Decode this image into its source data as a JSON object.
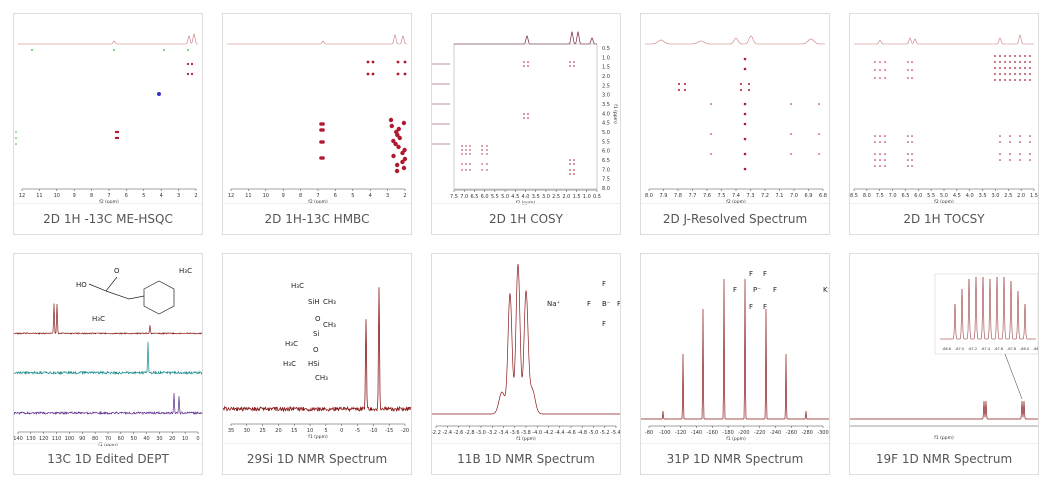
{
  "cards": [
    {
      "kind": "hsqc",
      "caption": "2D 1H -13C ME-HSQC",
      "axis_label": "f2 (ppm)",
      "ticks": [
        "12",
        "11",
        "10",
        "9",
        "8",
        "7",
        "6",
        "5",
        "4",
        "3",
        "2"
      ]
    },
    {
      "kind": "hmbc",
      "caption": "2D 1H-13C HMBC",
      "axis_label": "f2 (ppm)",
      "ticks": [
        "12",
        "11",
        "10",
        "9",
        "8",
        "7",
        "6",
        "5",
        "4",
        "3",
        "2"
      ]
    },
    {
      "kind": "cosy",
      "caption": "2D 1H COSY",
      "axis_label": "f2 (ppm)",
      "side_label": "f1 (ppm)",
      "ticks": [
        "7.5",
        "7.0",
        "6.5",
        "6.0",
        "5.5",
        "5.0",
        "4.5",
        "4.0",
        "3.5",
        "3.0",
        "2.5",
        "2.0",
        "1.5",
        "1.0",
        "0.5"
      ],
      "side_ticks": [
        "0.5",
        "1.0",
        "1.5",
        "2.0",
        "2.5",
        "3.0",
        "3.5",
        "4.0",
        "4.5",
        "5.0",
        "5.5",
        "6.0",
        "6.5",
        "7.0",
        "7.5",
        "8.0"
      ]
    },
    {
      "kind": "jres",
      "caption": "2D J-Resolved Spectrum",
      "axis_label": "f2 (ppm)",
      "ticks": [
        "8.0",
        "7.9",
        "7.8",
        "7.7",
        "7.6",
        "7.5",
        "7.4",
        "7.3",
        "7.2",
        "7.1",
        "7.0",
        "6.9",
        "6.8"
      ]
    },
    {
      "kind": "tocsy",
      "caption": "2D 1H TOCSY",
      "axis_label": "f2 (ppm)",
      "ticks": [
        "8.5",
        "8.0",
        "7.5",
        "7.0",
        "6.5",
        "6.0",
        "5.5",
        "5.0",
        "4.5",
        "4.0",
        "3.5",
        "3.0",
        "2.5",
        "2.0",
        "1.5"
      ]
    },
    {
      "kind": "dept",
      "caption": "13C 1D Edited DEPT",
      "axis_label": "f1 (ppm)",
      "ticks": [
        "140",
        "130",
        "120",
        "110",
        "100",
        "90",
        "80",
        "70",
        "60",
        "50",
        "40",
        "30",
        "20",
        "10",
        "0"
      ],
      "structure": [
        "O",
        "HO",
        "H₃C",
        "H₃C"
      ]
    },
    {
      "kind": "si",
      "caption": "29Si 1D NMR Spectrum",
      "axis_label": "f1 (ppm)",
      "ticks": [
        "35",
        "30",
        "25",
        "20",
        "15",
        "10",
        "5",
        "0",
        "-5",
        "-10",
        "-15",
        "-20"
      ],
      "structure": [
        "H₃C",
        "SiH",
        "CH₃",
        "O",
        "Si",
        "CH₃",
        "H₃C",
        "O",
        "H₃C",
        "HSi",
        "CH₃"
      ]
    },
    {
      "kind": "b",
      "caption": "11B 1D NMR Spectrum",
      "axis_label": "f1 (ppm)",
      "ticks": [
        "-2.2",
        "-2.4",
        "-2.6",
        "-2.8",
        "-3.0",
        "-3.2",
        "-3.4",
        "-3.6",
        "-3.8",
        "-4.0",
        "-4.2",
        "-4.4",
        "-4.6",
        "-4.8",
        "-5.0",
        "-5.2",
        "-5.4"
      ],
      "structure": [
        "Na⁺",
        "F",
        "F",
        "B⁻",
        "F",
        "F"
      ]
    },
    {
      "kind": "p",
      "caption": "31P 1D NMR Spectrum",
      "axis_label": "f1 (ppm)",
      "ticks": [
        "-80",
        "-100",
        "-120",
        "-140",
        "-160",
        "-180",
        "-200",
        "-220",
        "-240",
        "-260",
        "-280",
        "-300"
      ],
      "structure": [
        "F",
        "F",
        "F",
        "P⁻",
        "F",
        "F",
        "F",
        "K⁺"
      ]
    },
    {
      "kind": "f",
      "caption": "19F 1D NMR Spectrum",
      "axis_label": "f1 (ppm)",
      "ticks": [
        "-66.6",
        "-67.0",
        "-67.2",
        "-67.4",
        "-67.6",
        "-67.8",
        "-68.0",
        "-68.2"
      ]
    }
  ]
}
